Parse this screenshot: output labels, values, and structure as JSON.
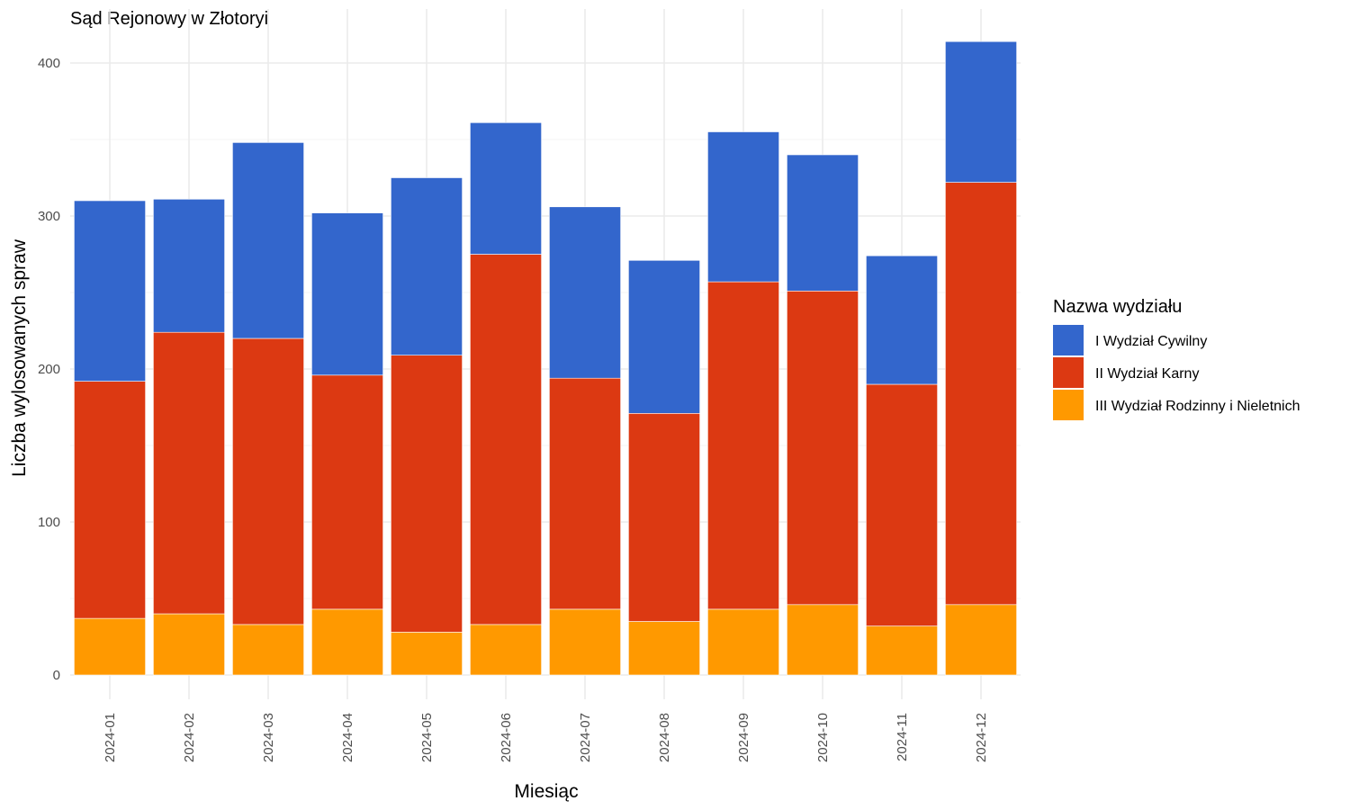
{
  "chart_data": {
    "type": "bar",
    "stacked": true,
    "title": "Sąd Rejonowy w Złotoryi",
    "xlabel": "Miesiąc",
    "ylabel": "Liczba wylosowanych spraw",
    "ylim": [
      0,
      430
    ],
    "yticks": [
      0,
      100,
      200,
      300,
      400
    ],
    "grid": true,
    "legend_title": "Nazwa wydziału",
    "legend_position": "right",
    "categories": [
      "2024-01",
      "2024-02",
      "2024-03",
      "2024-04",
      "2024-05",
      "2024-06",
      "2024-07",
      "2024-08",
      "2024-09",
      "2024-10",
      "2024-11",
      "2024-12"
    ],
    "series": [
      {
        "name": "I Wydział Cywilny",
        "color": "#3366cc",
        "values": [
          118,
          87,
          128,
          106,
          116,
          86,
          112,
          100,
          98,
          89,
          84,
          92
        ]
      },
      {
        "name": "II Wydział Karny",
        "color": "#dc3912",
        "values": [
          155,
          184,
          187,
          153,
          181,
          242,
          151,
          136,
          214,
          205,
          158,
          276
        ]
      },
      {
        "name": "III Wydział Rodzinny i Nieletnich",
        "color": "#ff9900",
        "values": [
          37,
          40,
          33,
          43,
          28,
          33,
          43,
          35,
          43,
          46,
          32,
          46
        ]
      }
    ]
  }
}
